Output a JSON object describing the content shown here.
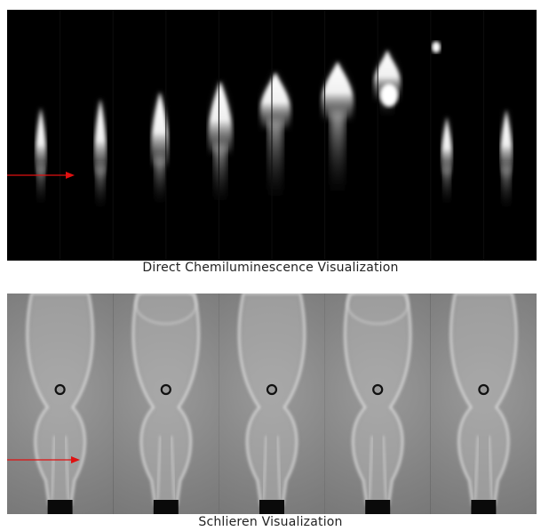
{
  "captions": {
    "top": "Direct Chemiluminescence Visualization",
    "bottom": "Schlieren Visualization"
  },
  "colors": {
    "background": "#ffffff",
    "panel_background": "#000000",
    "arrow": "#e01010",
    "flame": "#ffffff",
    "schlieren_field": "#8a8a8a"
  },
  "top_panel": {
    "flame_frame_count": 10,
    "schlieren_frame_count": 5
  }
}
